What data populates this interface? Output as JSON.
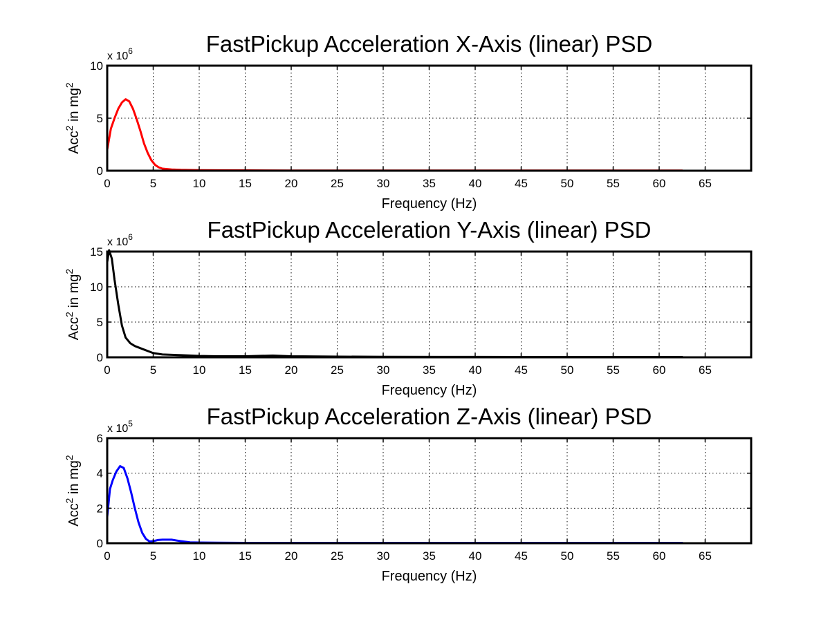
{
  "chart_data": [
    {
      "type": "line",
      "title": "FastPickup Acceleration X-Axis (linear) PSD",
      "xlabel": "Frequency (Hz)",
      "ylabel": "Acc² in mg²",
      "ylabel_base": "Acc",
      "ylabel_mid": " in mg",
      "ylabel_sup": "2",
      "exponent_base": "x 10",
      "exponent_power": "6",
      "xlim": [
        0,
        70
      ],
      "ylim": [
        0,
        10
      ],
      "xticks": [
        0,
        5,
        10,
        15,
        20,
        25,
        30,
        35,
        40,
        45,
        50,
        55,
        60,
        65
      ],
      "yticks": [
        0,
        5,
        10
      ],
      "grid": true,
      "series": [
        {
          "color": "#ff0000",
          "x": [
            0,
            0.4,
            0.8,
            1.2,
            1.6,
            2.0,
            2.4,
            2.8,
            3.2,
            3.6,
            4.0,
            4.4,
            4.8,
            5.2,
            5.6,
            6.0,
            7.0,
            8.0,
            10.0,
            12.0,
            15.0,
            20.0,
            30.0,
            40.0,
            50.0,
            62.5
          ],
          "y": [
            2.0,
            4.0,
            5.0,
            5.9,
            6.5,
            6.8,
            6.6,
            5.9,
            4.9,
            3.8,
            2.6,
            1.7,
            1.0,
            0.55,
            0.32,
            0.2,
            0.12,
            0.08,
            0.05,
            0.04,
            0.03,
            0.02,
            0.02,
            0.02,
            0.02,
            0.02
          ]
        }
      ]
    },
    {
      "type": "line",
      "title": "FastPickup Acceleration Y-Axis (linear) PSD",
      "xlabel": "Frequency (Hz)",
      "ylabel": "Acc² in mg²",
      "ylabel_base": "Acc",
      "ylabel_mid": " in mg",
      "ylabel_sup": "2",
      "exponent_base": "x 10",
      "exponent_power": "6",
      "xlim": [
        0,
        70
      ],
      "ylim": [
        0,
        15
      ],
      "xticks": [
        0,
        5,
        10,
        15,
        20,
        25,
        30,
        35,
        40,
        45,
        50,
        55,
        60,
        65
      ],
      "yticks": [
        0,
        5,
        10,
        15
      ],
      "grid": true,
      "series": [
        {
          "color": "#000000",
          "x": [
            0,
            0.2,
            0.5,
            0.8,
            1.2,
            1.6,
            2.0,
            2.5,
            3.0,
            4.0,
            5.0,
            6.0,
            8.0,
            10.0,
            12.0,
            15.0,
            18.0,
            20.0,
            25.0,
            30.0,
            40.0,
            50.0,
            62.5
          ],
          "y": [
            13.5,
            15.2,
            14.0,
            11.0,
            7.5,
            4.5,
            2.8,
            2.0,
            1.6,
            1.1,
            0.6,
            0.4,
            0.3,
            0.2,
            0.15,
            0.15,
            0.25,
            0.15,
            0.1,
            0.08,
            0.06,
            0.05,
            0.05
          ]
        }
      ]
    },
    {
      "type": "line",
      "title": "FastPickup Acceleration Z-Axis (linear) PSD",
      "xlabel": "Frequency (Hz)",
      "ylabel": "Acc² in mg²",
      "ylabel_base": "Acc",
      "ylabel_mid": " in mg",
      "ylabel_sup": "2",
      "exponent_base": "x 10",
      "exponent_power": "5",
      "xlim": [
        0,
        70
      ],
      "ylim": [
        0,
        6
      ],
      "xticks": [
        0,
        5,
        10,
        15,
        20,
        25,
        30,
        35,
        40,
        45,
        50,
        55,
        60,
        65
      ],
      "yticks": [
        0,
        2,
        4,
        6
      ],
      "grid": true,
      "series": [
        {
          "color": "#0000ff",
          "x": [
            0,
            0.3,
            0.6,
            1.0,
            1.4,
            1.8,
            2.2,
            2.6,
            3.0,
            3.4,
            3.8,
            4.2,
            4.6,
            5.0,
            5.5,
            6.0,
            7.0,
            8.0,
            9.0,
            10.0,
            12.0,
            15.0,
            20.0,
            30.0,
            40.0,
            50.0,
            62.5
          ],
          "y": [
            1.5,
            3.1,
            3.6,
            4.1,
            4.4,
            4.3,
            3.7,
            2.9,
            2.0,
            1.2,
            0.6,
            0.25,
            0.1,
            0.12,
            0.18,
            0.2,
            0.2,
            0.12,
            0.05,
            0.04,
            0.03,
            0.02,
            0.02,
            0.02,
            0.02,
            0.02,
            0.02
          ]
        }
      ]
    }
  ]
}
